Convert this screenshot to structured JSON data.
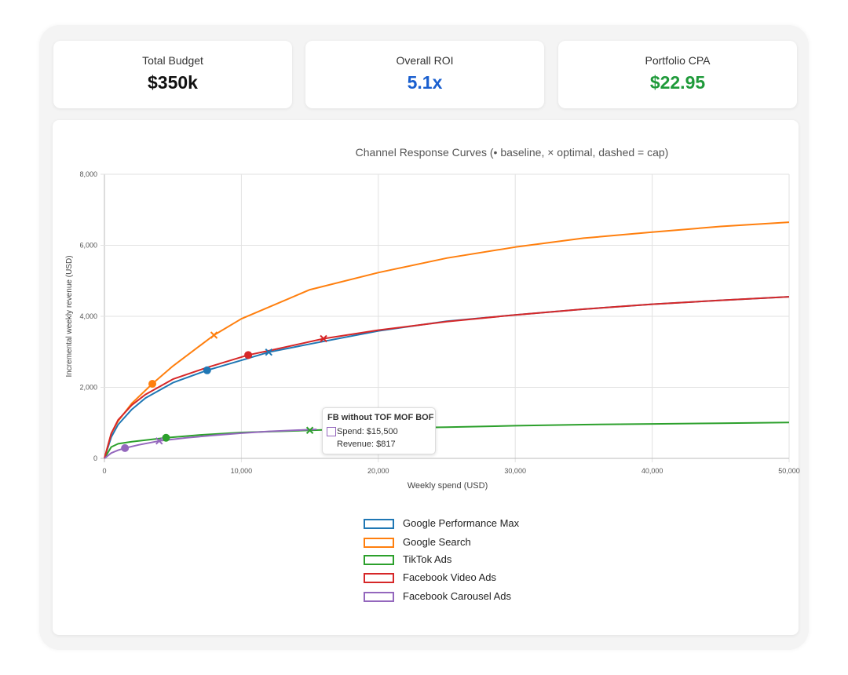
{
  "kpis": [
    {
      "label": "Total Budget",
      "value": "$350k",
      "color": "#111111"
    },
    {
      "label": "Overall ROI",
      "value": "5.1x",
      "color": "#1a5fcf"
    },
    {
      "label": "Portfolio CPA",
      "value": "$22.95",
      "color": "#1f9a3a"
    }
  ],
  "chart_data": {
    "type": "line",
    "title": "Channel Response Curves (• baseline, × optimal, dashed = cap)",
    "xlabel": "Weekly spend (USD)",
    "ylabel": "Incremental weekly revenue (USD)",
    "xlim": [
      0,
      50000
    ],
    "ylim": [
      0,
      8000
    ],
    "x_ticks": [
      "0",
      "10,000",
      "20,000",
      "30,000",
      "40,000",
      "50,000"
    ],
    "y_ticks": [
      "0",
      "2,000",
      "4,000",
      "6,000",
      "8,000"
    ],
    "grid": true,
    "legend_position": "bottom",
    "series": [
      {
        "name": "Google Performance Max",
        "color": "#1f77b4",
        "x": [
          0,
          500,
          1000,
          2000,
          3000,
          5000,
          7500,
          10000,
          12000,
          15000,
          20000,
          25000,
          30000,
          35000,
          40000,
          45000,
          50000
        ],
        "y": [
          0,
          600,
          950,
          1380,
          1700,
          2130,
          2480,
          2760,
          2990,
          3220,
          3590,
          3860,
          4040,
          4200,
          4340,
          4450,
          4550
        ],
        "baseline": {
          "x": 7500,
          "y": 2480
        },
        "optimal": {
          "x": 12000,
          "y": 2990
        }
      },
      {
        "name": "Google Search",
        "color": "#ff7f0e",
        "x": [
          0,
          500,
          1000,
          2000,
          3500,
          5000,
          8000,
          10000,
          15000,
          20000,
          25000,
          30000,
          35000,
          40000,
          45000,
          50000
        ],
        "y": [
          0,
          700,
          1050,
          1550,
          2100,
          2600,
          3470,
          3930,
          4750,
          5230,
          5640,
          5950,
          6200,
          6370,
          6530,
          6650
        ],
        "baseline": {
          "x": 3500,
          "y": 2100
        },
        "optimal": {
          "x": 8000,
          "y": 3470
        }
      },
      {
        "name": "TikTok Ads",
        "color": "#2ca02c",
        "x": [
          0,
          500,
          1000,
          2000,
          4500,
          7000,
          10000,
          15000,
          20000,
          25000,
          30000,
          35000,
          40000,
          45000,
          50000
        ],
        "y": [
          0,
          320,
          410,
          470,
          580,
          660,
          730,
          790,
          850,
          880,
          920,
          950,
          970,
          990,
          1010
        ],
        "baseline": {
          "x": 4500,
          "y": 580
        },
        "optimal": {
          "x": 15000,
          "y": 790
        }
      },
      {
        "name": "Facebook Video Ads",
        "color": "#d62728",
        "x": [
          0,
          500,
          1000,
          2000,
          3000,
          5000,
          7500,
          10500,
          12000,
          16000,
          20000,
          25000,
          30000,
          35000,
          40000,
          45000,
          50000
        ],
        "y": [
          0,
          700,
          1080,
          1500,
          1800,
          2230,
          2560,
          2910,
          3030,
          3370,
          3610,
          3850,
          4040,
          4200,
          4340,
          4450,
          4550
        ],
        "baseline": {
          "x": 10500,
          "y": 2910
        },
        "optimal": {
          "x": 16000,
          "y": 3370
        }
      },
      {
        "name": "Facebook Carousel Ads",
        "color": "#9467bd",
        "x": [
          0,
          500,
          1000,
          1500,
          2500,
          4000,
          6000,
          8000,
          10000,
          12000,
          15500
        ],
        "y": [
          0,
          150,
          230,
          290,
          380,
          490,
          580,
          650,
          710,
          760,
          817
        ],
        "baseline": {
          "x": 1500,
          "y": 290
        },
        "optimal": {
          "x": 4000,
          "y": 490
        }
      }
    ]
  },
  "tooltip": {
    "title": "FB without TOF MOF BOF",
    "spend": "Spend: $15,500",
    "revenue": "Revenue: $817"
  }
}
